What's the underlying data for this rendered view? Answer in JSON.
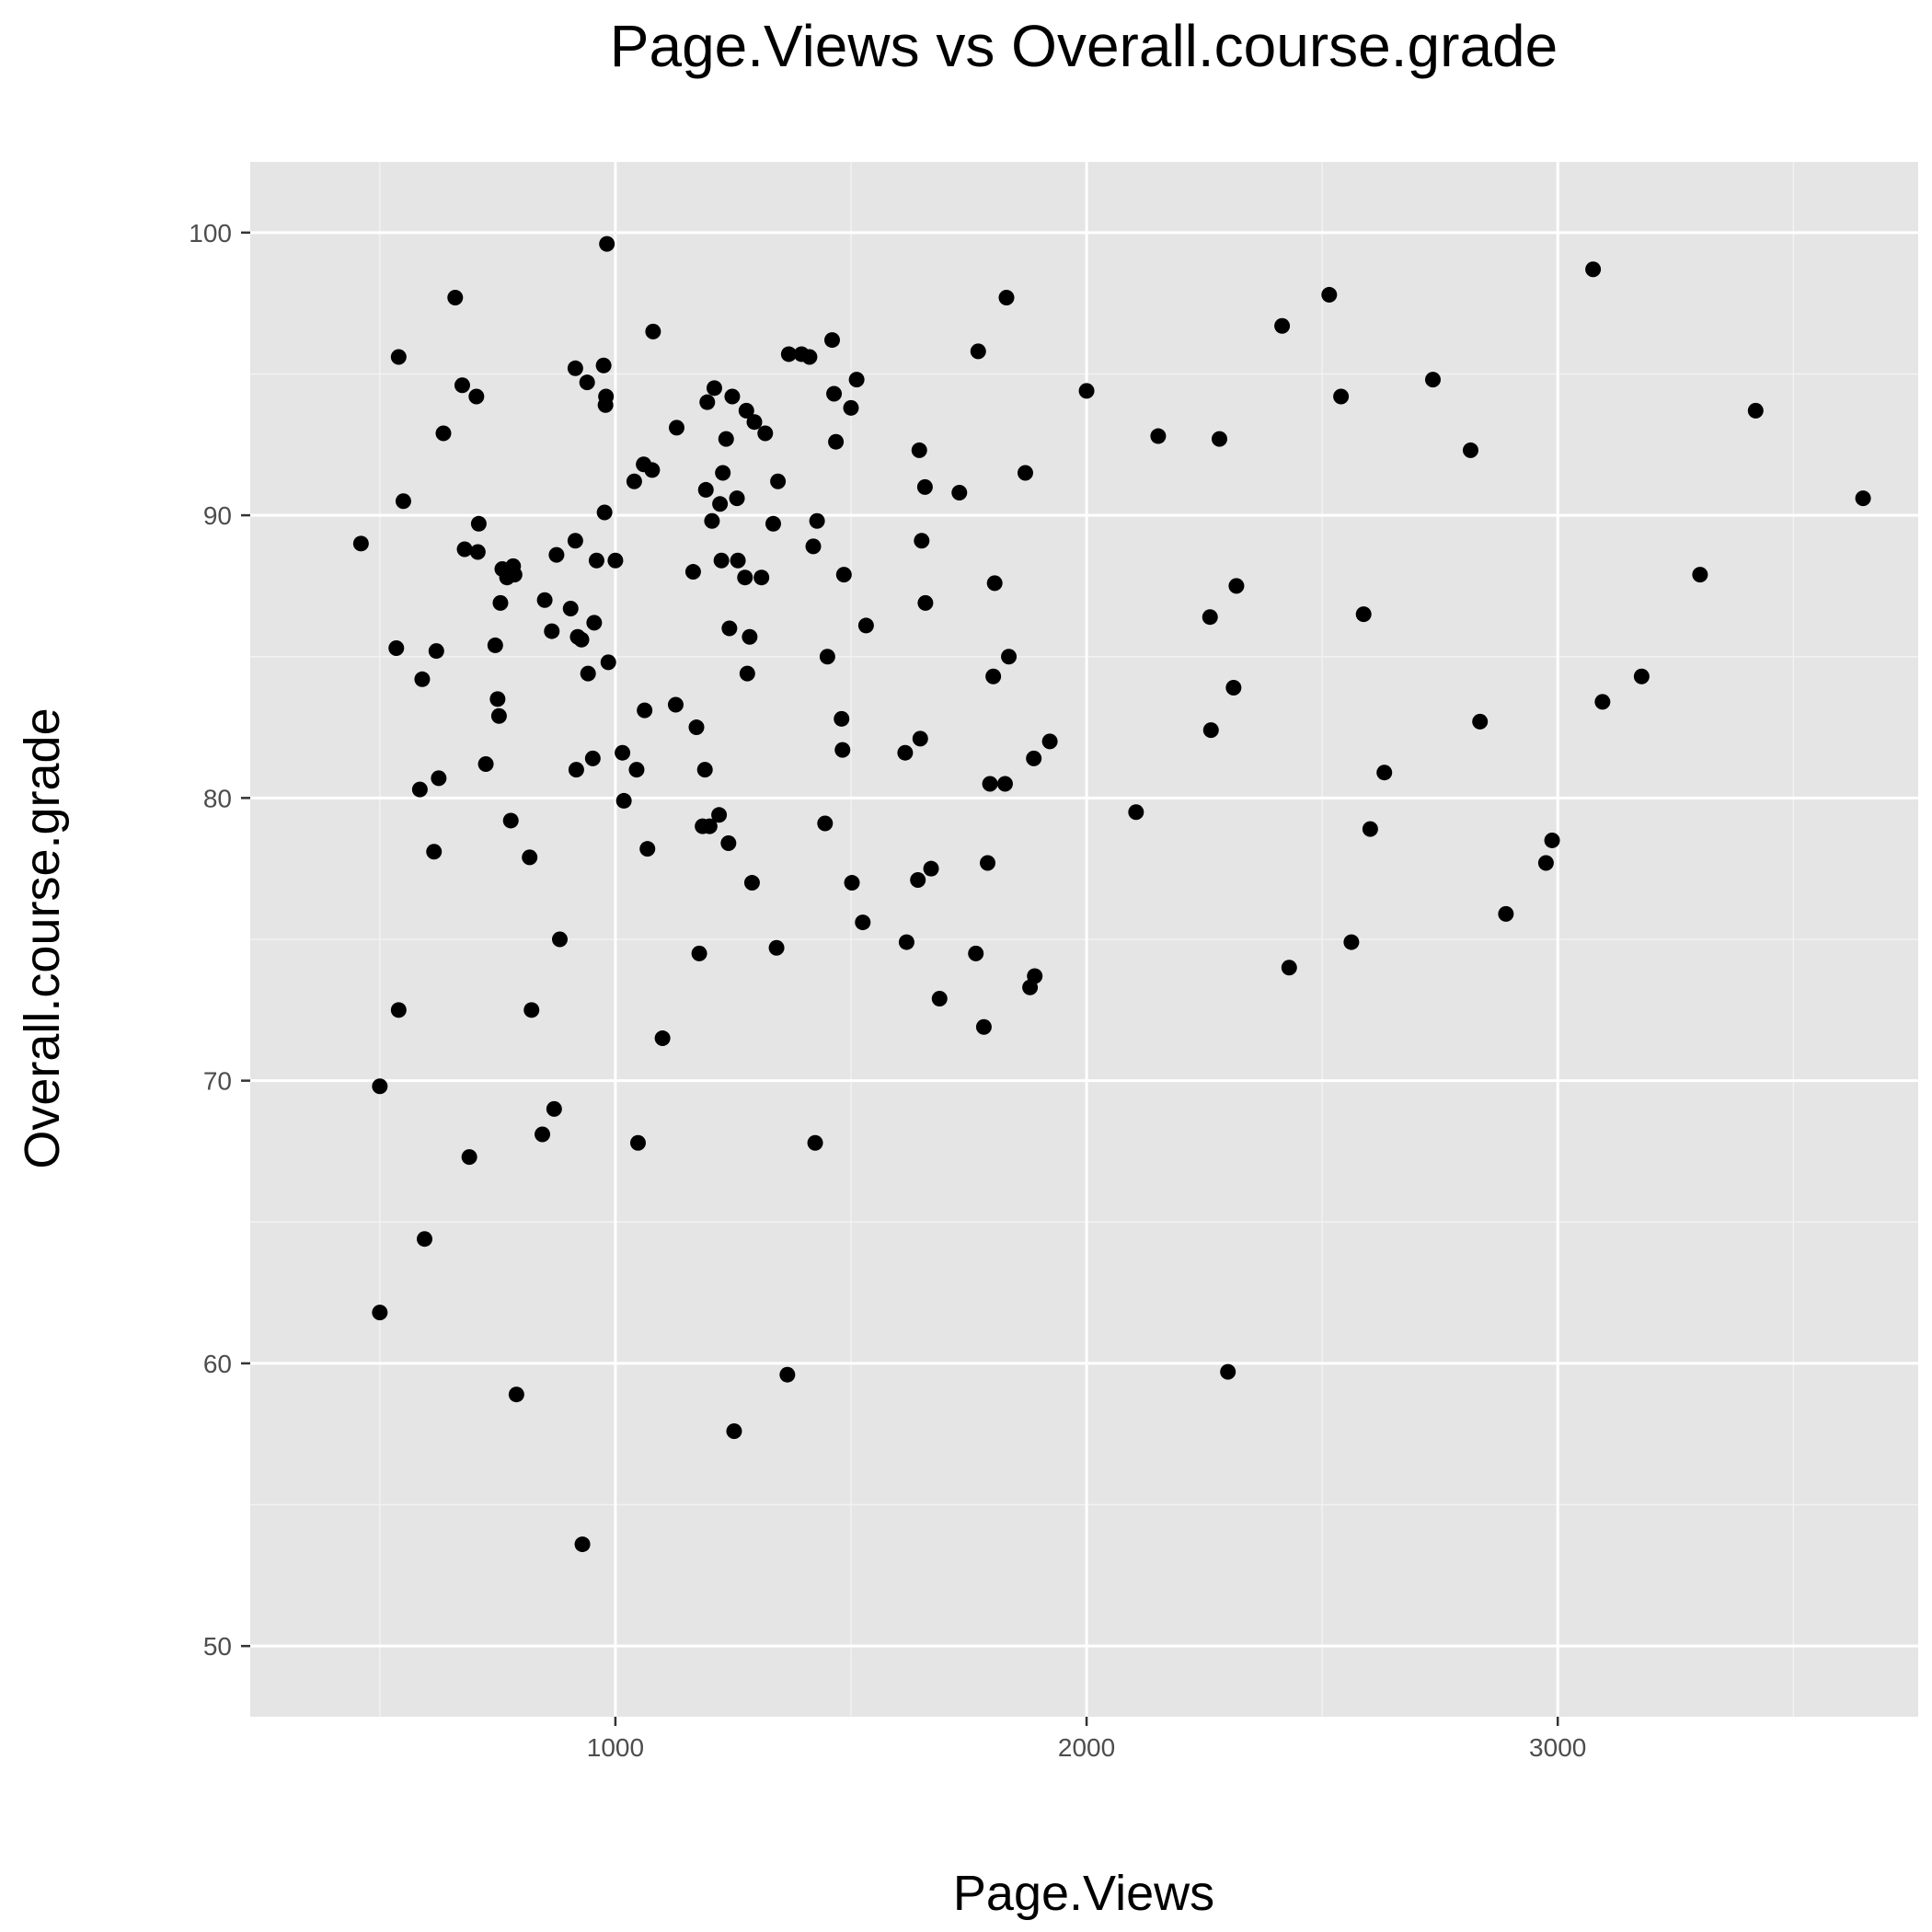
{
  "chart_data": {
    "type": "scatter",
    "title": "Page.Views vs Overall.course.grade",
    "xlabel": "Page.Views",
    "ylabel": "Overall.course.grade",
    "xlim": [
      225,
      3765
    ],
    "ylim": [
      47.5,
      102.5
    ],
    "x_ticks": [
      1000,
      2000,
      3000
    ],
    "x_tick_labels": [
      "1000",
      "2000",
      "3000"
    ],
    "x_minor_ticks": [
      500,
      1500,
      2500,
      3500
    ],
    "y_ticks": [
      50,
      60,
      70,
      80,
      90,
      100
    ],
    "y_tick_labels": [
      "50",
      "60",
      "70",
      "80",
      "90",
      "100"
    ],
    "y_minor_ticks": [
      55,
      65,
      75,
      85,
      95
    ],
    "grid": true,
    "colors": {
      "panel_background": "#e5e5e5",
      "grid_major": "#ffffff",
      "grid_minor": "#f2f2f2",
      "point": "#000000",
      "tick_text": "#4d4d4d",
      "text": "#000000"
    },
    "points": [
      [
        460,
        89
      ],
      [
        500,
        61.8
      ],
      [
        500,
        69.8
      ],
      [
        540,
        72.5
      ],
      [
        540,
        95.6
      ],
      [
        535,
        85.3
      ],
      [
        550,
        90.5
      ],
      [
        585,
        80.3
      ],
      [
        590,
        84.2
      ],
      [
        595,
        64.4
      ],
      [
        615,
        78.1
      ],
      [
        620,
        85.2
      ],
      [
        625,
        80.7
      ],
      [
        635,
        92.9
      ],
      [
        660,
        97.7
      ],
      [
        675,
        94.6
      ],
      [
        680,
        88.8
      ],
      [
        690,
        67.3
      ],
      [
        705,
        94.2
      ],
      [
        708,
        88.7
      ],
      [
        710,
        89.7
      ],
      [
        725,
        81.2
      ],
      [
        745,
        85.4
      ],
      [
        750,
        83.5
      ],
      [
        753,
        82.9
      ],
      [
        756,
        86.9
      ],
      [
        760,
        88.1
      ],
      [
        770,
        87.8
      ],
      [
        778,
        79.2
      ],
      [
        783,
        88.2
      ],
      [
        786,
        87.9
      ],
      [
        790,
        58.9
      ],
      [
        818,
        77.9
      ],
      [
        822,
        72.5
      ],
      [
        845,
        68.1
      ],
      [
        850,
        87
      ],
      [
        865,
        85.9
      ],
      [
        870,
        69
      ],
      [
        875,
        88.6
      ],
      [
        882,
        75
      ],
      [
        905,
        86.7
      ],
      [
        915,
        89.1
      ],
      [
        915,
        95.2
      ],
      [
        917,
        81
      ],
      [
        920,
        85.7
      ],
      [
        928,
        85.6
      ],
      [
        930,
        53.6
      ],
      [
        940,
        94.7
      ],
      [
        942,
        84.4
      ],
      [
        952,
        81.4
      ],
      [
        955,
        86.2
      ],
      [
        960,
        88.4
      ],
      [
        975,
        95.3
      ],
      [
        977,
        90.1
      ],
      [
        979,
        93.9
      ],
      [
        980,
        94.2
      ],
      [
        982,
        99.6
      ],
      [
        985,
        84.8
      ],
      [
        1000,
        88.4
      ],
      [
        1015,
        81.6
      ],
      [
        1018,
        79.9
      ],
      [
        1040,
        91.2
      ],
      [
        1045,
        81
      ],
      [
        1048,
        67.8
      ],
      [
        1060,
        91.8
      ],
      [
        1062,
        83.1
      ],
      [
        1068,
        78.2
      ],
      [
        1078,
        91.6
      ],
      [
        1080,
        96.5
      ],
      [
        1100,
        71.5
      ],
      [
        1128,
        83.3
      ],
      [
        1130,
        93.1
      ],
      [
        1165,
        88
      ],
      [
        1172,
        82.5
      ],
      [
        1178,
        74.5
      ],
      [
        1185,
        79
      ],
      [
        1190,
        81
      ],
      [
        1192,
        90.9
      ],
      [
        1195,
        94
      ],
      [
        1200,
        79
      ],
      [
        1205,
        89.8
      ],
      [
        1210,
        94.5
      ],
      [
        1220,
        79.4
      ],
      [
        1222,
        90.4
      ],
      [
        1225,
        88.4
      ],
      [
        1228,
        91.5
      ],
      [
        1235,
        92.7
      ],
      [
        1240,
        78.4
      ],
      [
        1242,
        86
      ],
      [
        1248,
        94.2
      ],
      [
        1252,
        57.6
      ],
      [
        1258,
        90.6
      ],
      [
        1260,
        88.4
      ],
      [
        1275,
        87.8
      ],
      [
        1278,
        93.7
      ],
      [
        1280,
        84.4
      ],
      [
        1285,
        85.7
      ],
      [
        1290,
        77
      ],
      [
        1295,
        93.3
      ],
      [
        1310,
        87.8
      ],
      [
        1318,
        92.9
      ],
      [
        1335,
        89.7
      ],
      [
        1342,
        74.7
      ],
      [
        1345,
        91.2
      ],
      [
        1365,
        59.6
      ],
      [
        1368,
        95.7
      ],
      [
        1395,
        95.7
      ],
      [
        1412,
        95.6
      ],
      [
        1420,
        88.9
      ],
      [
        1424,
        67.8
      ],
      [
        1428,
        89.8
      ],
      [
        1445,
        79.1
      ],
      [
        1450,
        85
      ],
      [
        1460,
        96.2
      ],
      [
        1464,
        94.3
      ],
      [
        1468,
        92.6
      ],
      [
        1480,
        82.8
      ],
      [
        1482,
        81.7
      ],
      [
        1485,
        87.9
      ],
      [
        1500,
        93.8
      ],
      [
        1502,
        77
      ],
      [
        1512,
        94.8
      ],
      [
        1525,
        75.6
      ],
      [
        1532,
        86.1
      ],
      [
        1615,
        81.6
      ],
      [
        1618,
        74.9
      ],
      [
        1642,
        77.1
      ],
      [
        1645,
        92.3
      ],
      [
        1647,
        82.1
      ],
      [
        1650,
        89.1
      ],
      [
        1657,
        91
      ],
      [
        1658,
        86.9
      ],
      [
        1670,
        77.5
      ],
      [
        1688,
        72.9
      ],
      [
        1730,
        90.8
      ],
      [
        1765,
        74.5
      ],
      [
        1770,
        95.8
      ],
      [
        1782,
        71.9
      ],
      [
        1790,
        77.7
      ],
      [
        1795,
        80.5
      ],
      [
        1802,
        84.3
      ],
      [
        1805,
        87.6
      ],
      [
        1827,
        80.5
      ],
      [
        1830,
        97.7
      ],
      [
        1835,
        85
      ],
      [
        1870,
        91.5
      ],
      [
        1880,
        73.3
      ],
      [
        1888,
        81.4
      ],
      [
        1890,
        73.7
      ],
      [
        1922,
        82
      ],
      [
        2000,
        94.4
      ],
      [
        2105,
        79.5
      ],
      [
        2152,
        92.8
      ],
      [
        2262,
        86.4
      ],
      [
        2264,
        82.4
      ],
      [
        2282,
        92.7
      ],
      [
        2300,
        59.7
      ],
      [
        2312,
        83.9
      ],
      [
        2318,
        87.5
      ],
      [
        2415,
        96.7
      ],
      [
        2430,
        74
      ],
      [
        2515,
        97.8
      ],
      [
        2540,
        94.2
      ],
      [
        2562,
        74.9
      ],
      [
        2588,
        86.5
      ],
      [
        2602,
        78.9
      ],
      [
        2632,
        80.9
      ],
      [
        2735,
        94.8
      ],
      [
        2815,
        92.3
      ],
      [
        2835,
        82.7
      ],
      [
        2890,
        75.9
      ],
      [
        2975,
        77.7
      ],
      [
        2988,
        78.5
      ],
      [
        3075,
        98.7
      ],
      [
        3095,
        83.4
      ],
      [
        3178,
        84.3
      ],
      [
        3302,
        87.9
      ],
      [
        3420,
        93.7
      ],
      [
        3648,
        90.6
      ]
    ]
  }
}
